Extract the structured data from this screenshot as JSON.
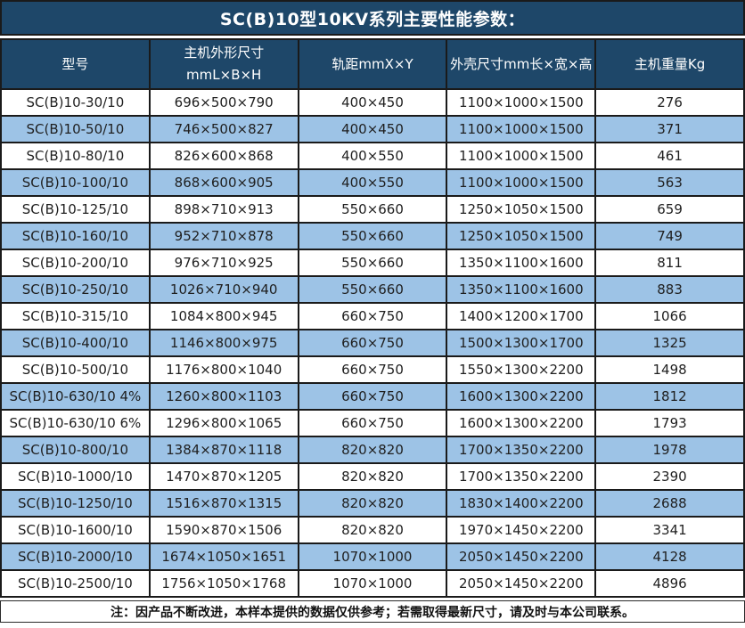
{
  "title": "SC(B)10型10KV系列主要性能参数：",
  "colors": {
    "navy": "#1e4769",
    "rowblue": "#9dc3e6",
    "border": "#1a1a1a",
    "text": "#1f1f1f"
  },
  "table": {
    "headers": [
      "型号",
      "主机外形尺寸\nmmL×B×H",
      "轨距mmX×Y",
      "外壳尺寸mm长×宽×高",
      "主机重量Kg"
    ],
    "rows": [
      [
        "SC(B)10-30/10",
        "696×500×790",
        "400×450",
        "1100×1000×1500",
        "276"
      ],
      [
        "SC(B)10-50/10",
        "746×500×827",
        "400×450",
        "1100×1000×1500",
        "371"
      ],
      [
        "SC(B)10-80/10",
        "826×600×868",
        "400×550",
        "1100×1000×1500",
        "461"
      ],
      [
        "SC(B)10-100/10",
        "868×600×905",
        "400×550",
        "1100×1000×1500",
        "563"
      ],
      [
        "SC(B)10-125/10",
        "898×710×913",
        "550×660",
        "1250×1050×1500",
        "659"
      ],
      [
        "SC(B)10-160/10",
        "952×710×878",
        "550×660",
        "1250×1050×1500",
        "749"
      ],
      [
        "SC(B)10-200/10",
        "976×710×925",
        "550×660",
        "1350×1100×1600",
        "811"
      ],
      [
        "SC(B)10-250/10",
        "1026×710×940",
        "550×660",
        "1350×1100×1600",
        "883"
      ],
      [
        "SC(B)10-315/10",
        "1084×800×945",
        "660×750",
        "1400×1200×1700",
        "1066"
      ],
      [
        "SC(B)10-400/10",
        "1146×800×975",
        "660×750",
        "1500×1300×1700",
        "1325"
      ],
      [
        "SC(B)10-500/10",
        "1176×800×1040",
        "660×750",
        "1550×1300×2200",
        "1498"
      ],
      [
        "SC(B)10-630/10 4%",
        "1260×800×1103",
        "660×750",
        "1600×1300×2200",
        "1812"
      ],
      [
        "SC(B)10-630/10 6%",
        "1296×800×1065",
        "660×750",
        "1600×1300×2200",
        "1793"
      ],
      [
        "SC(B)10-800/10",
        "1384×870×1118",
        "820×820",
        "1700×1350×2200",
        "1978"
      ],
      [
        "SC(B)10-1000/10",
        "1470×870×1205",
        "820×820",
        "1700×1350×2200",
        "2390"
      ],
      [
        "SC(B)10-1250/10",
        "1516×870×1315",
        "820×820",
        "1830×1400×2200",
        "2688"
      ],
      [
        "SC(B)10-1600/10",
        "1590×870×1506",
        "820×820",
        "1970×1450×2200",
        "3341"
      ],
      [
        "SC(B)10-2000/10",
        "1674×1050×1651",
        "1070×1000",
        "2050×1450×2200",
        "4128"
      ],
      [
        "SC(B)10-2500/10",
        "1756×1050×1768",
        "1070×1000",
        "2050×1450×2200",
        "4896"
      ]
    ]
  },
  "note": "注：因产品不断改进，本样本提供的数据仅供参考；若需取得最新尺寸，请及时与本公司联系。"
}
